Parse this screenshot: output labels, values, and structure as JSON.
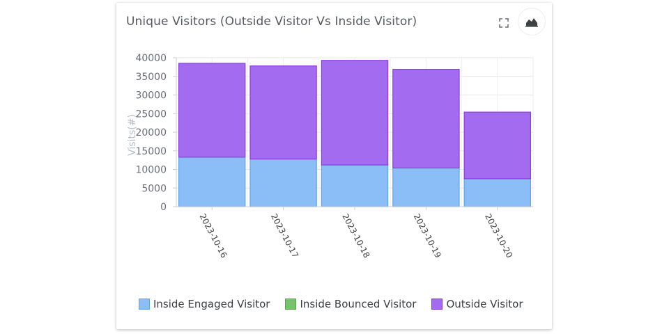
{
  "card": {
    "title": "Unique Visitors (Outside Visitor Vs Inside Visitor)",
    "icons": {
      "expand": "fullscreen-icon",
      "chart": "area-chart-icon"
    }
  },
  "chart_data": {
    "type": "bar",
    "stacked": true,
    "categories": [
      "2023-10-16",
      "2023-10-17",
      "2023-10-18",
      "2023-10-19",
      "2023-10-20"
    ],
    "series": [
      {
        "name": "Inside Engaged Visitor",
        "color": "#8bbdf7",
        "stroke": "#5ea5ee",
        "values": [
          13300,
          12800,
          11200,
          10400,
          7500
        ]
      },
      {
        "name": "Inside Bounced Visitor",
        "color": "#77c26c",
        "stroke": "#5aa54e",
        "values": [
          0,
          0,
          0,
          0,
          0
        ]
      },
      {
        "name": "Outside Visitor",
        "color": "#a36bef",
        "stroke": "#8a3ee0",
        "values": [
          25200,
          25000,
          28100,
          26500,
          17900
        ]
      }
    ],
    "ylabel": "Visits(#)",
    "xlabel": "",
    "ylim": [
      0,
      40000
    ],
    "yticks": [
      0,
      5000,
      10000,
      15000,
      20000,
      25000,
      30000,
      35000,
      40000
    ],
    "grid": true,
    "legend_position": "bottom"
  }
}
